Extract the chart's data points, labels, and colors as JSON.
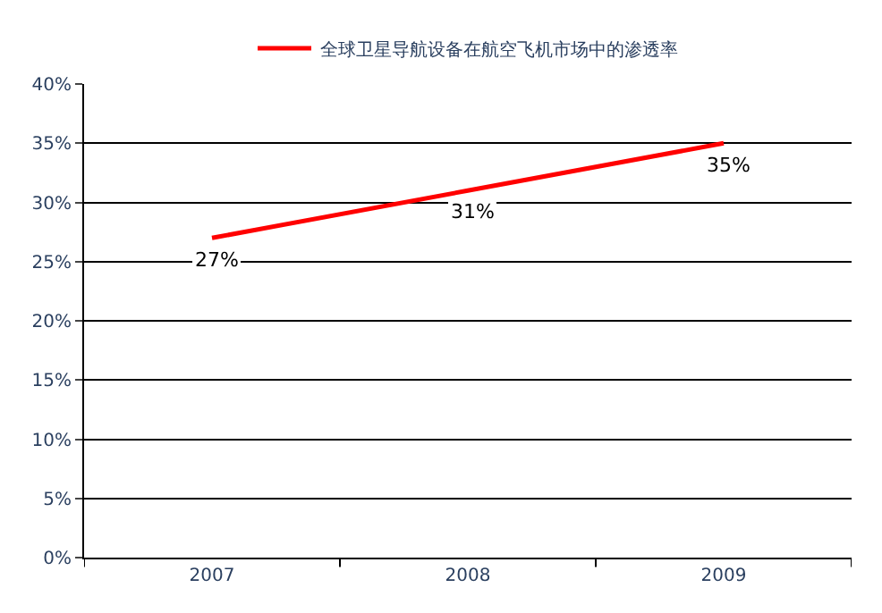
{
  "chart_data": {
    "type": "line",
    "categories": [
      "2007",
      "2008",
      "2009"
    ],
    "series": [
      {
        "name": "全球卫星导航设备在航空飞机市场中的渗透率",
        "color": "#ff0000",
        "values": [
          27,
          31,
          35
        ],
        "value_labels": [
          "27%",
          "31%",
          "35%"
        ]
      }
    ],
    "ylim": [
      0,
      40
    ],
    "yticks": [
      {
        "value": 0,
        "label": "0%"
      },
      {
        "value": 5,
        "label": "5%"
      },
      {
        "value": 10,
        "label": "10%"
      },
      {
        "value": 15,
        "label": "15%"
      },
      {
        "value": 20,
        "label": "20%"
      },
      {
        "value": 25,
        "label": "25%"
      },
      {
        "value": 30,
        "label": "30%"
      },
      {
        "value": 35,
        "label": "35%"
      },
      {
        "value": 40,
        "label": "40%"
      }
    ],
    "grid": "y",
    "legend": "top",
    "marker": "none",
    "line_style": "solid"
  }
}
